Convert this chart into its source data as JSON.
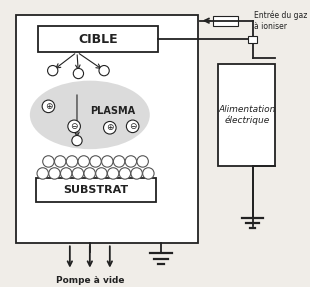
{
  "bg_color": "#f0ede8",
  "chamber_color": "#ffffff",
  "box_color": "#222222",
  "cible_label": "CIBLE",
  "substrat_label": "SUBSTRAT",
  "plasma_label": "PLASMA",
  "alim_label": "Alimentation\nélectrique",
  "gas_label": "Entrée du gaz\nà ioniser",
  "pompe_label": "Pompe à vide",
  "lw": 1.3
}
